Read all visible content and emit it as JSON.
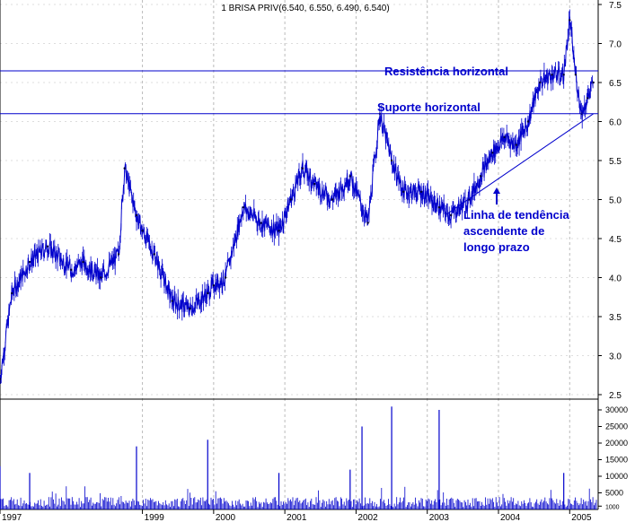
{
  "chart_data": {
    "type": "line",
    "title": "1 BRISA PRIV(6.540, 6.550, 6.490, 6.540)",
    "price_panel": {
      "ylim": [
        2.5,
        7.5
      ],
      "yticks": [
        2.5,
        3.0,
        3.5,
        4.0,
        4.5,
        5.0,
        5.5,
        6.0,
        6.5,
        7.0,
        7.5
      ],
      "ytick_labels": [
        "2.5",
        "3.0",
        "3.5",
        "4.0",
        "4.5",
        "5.0",
        "5.5",
        "6.0",
        "6.5",
        "7.0",
        "7.5"
      ],
      "series": [
        {
          "color": "#0000cc",
          "x": [
            "1997-01",
            "1997-03",
            "1997-06",
            "1997-09",
            "1998-01",
            "1998-03",
            "1998-06",
            "1998-09",
            "1998-10",
            "1998-12",
            "1999-01",
            "1999-03",
            "1999-06",
            "1999-09",
            "1999-12",
            "2000-01",
            "2000-03",
            "2000-06",
            "2000-09",
            "2000-12",
            "2001-02",
            "2001-04",
            "2001-06",
            "2001-09",
            "2001-12",
            "2002-03",
            "2002-05",
            "2002-07",
            "2002-09",
            "2002-12",
            "2003-03",
            "2003-05",
            "2003-08",
            "2003-10",
            "2003-12",
            "2004-02",
            "2004-04",
            "2004-06",
            "2004-08",
            "2004-10",
            "2004-12",
            "2005-01",
            "2005-02",
            "2005-03",
            "2005-04",
            "2005-05"
          ],
          "values": [
            2.7,
            3.8,
            4.2,
            4.4,
            4.1,
            4.2,
            4.0,
            4.3,
            5.4,
            4.8,
            4.6,
            4.3,
            3.7,
            3.6,
            3.8,
            3.9,
            4.0,
            4.9,
            4.7,
            4.6,
            5.0,
            5.4,
            5.2,
            5.0,
            5.3,
            4.7,
            6.1,
            5.5,
            5.1,
            5.1,
            4.9,
            4.8,
            5.0,
            5.3,
            5.6,
            5.8,
            5.7,
            6.0,
            6.5,
            6.6,
            6.6,
            7.3,
            6.6,
            6.1,
            6.3,
            6.5
          ]
        }
      ]
    },
    "volume_panel": {
      "ylim": [
        0,
        30000
      ],
      "yticks": [
        1000,
        5000,
        10000,
        15000,
        20000,
        25000,
        30000
      ],
      "ytick_labels": [
        "1000",
        "5000",
        "10000",
        "15000",
        "20000",
        "25000",
        "30000"
      ],
      "spikes": [
        {
          "x": "1997-01",
          "value": 13000
        },
        {
          "x": "1997-06",
          "value": 11000
        },
        {
          "x": "1998-12",
          "value": 19000
        },
        {
          "x": "1999-12",
          "value": 21000
        },
        {
          "x": "2000-12",
          "value": 11000
        },
        {
          "x": "2001-12",
          "value": 12000
        },
        {
          "x": "2002-02",
          "value": 25000
        },
        {
          "x": "2002-07",
          "value": 31000
        },
        {
          "x": "2003-03",
          "value": 30000
        },
        {
          "x": "2004-12",
          "value": 11000
        }
      ],
      "baseline_level": 2500
    },
    "x_axis": {
      "tick_labels": [
        "1997",
        "1999",
        "2000",
        "2001",
        "2002",
        "2003",
        "2004",
        "2005"
      ],
      "tick_x": [
        "1997-01",
        "1999-01",
        "2000-01",
        "2001-01",
        "2002-01",
        "2003-01",
        "2004-01",
        "2005-01"
      ]
    },
    "support_line": {
      "label": "Suporte horizontal",
      "value": 6.1
    },
    "resistance_line": {
      "label": "Resistência horizontal",
      "value": 6.65
    },
    "trend_line": {
      "start": {
        "x": "2003-04",
        "value": 4.8
      },
      "end": {
        "x": "2005-05",
        "value": 6.1
      }
    },
    "annotation": {
      "lines": [
        "Linha de tendência",
        "ascendente de",
        "longo prazo"
      ],
      "arrow_to": "2004-01"
    },
    "colors": {
      "series": "#0000cc",
      "reference": "#0000cc",
      "grid": "#bbbbbb",
      "axis": "#000000"
    }
  }
}
